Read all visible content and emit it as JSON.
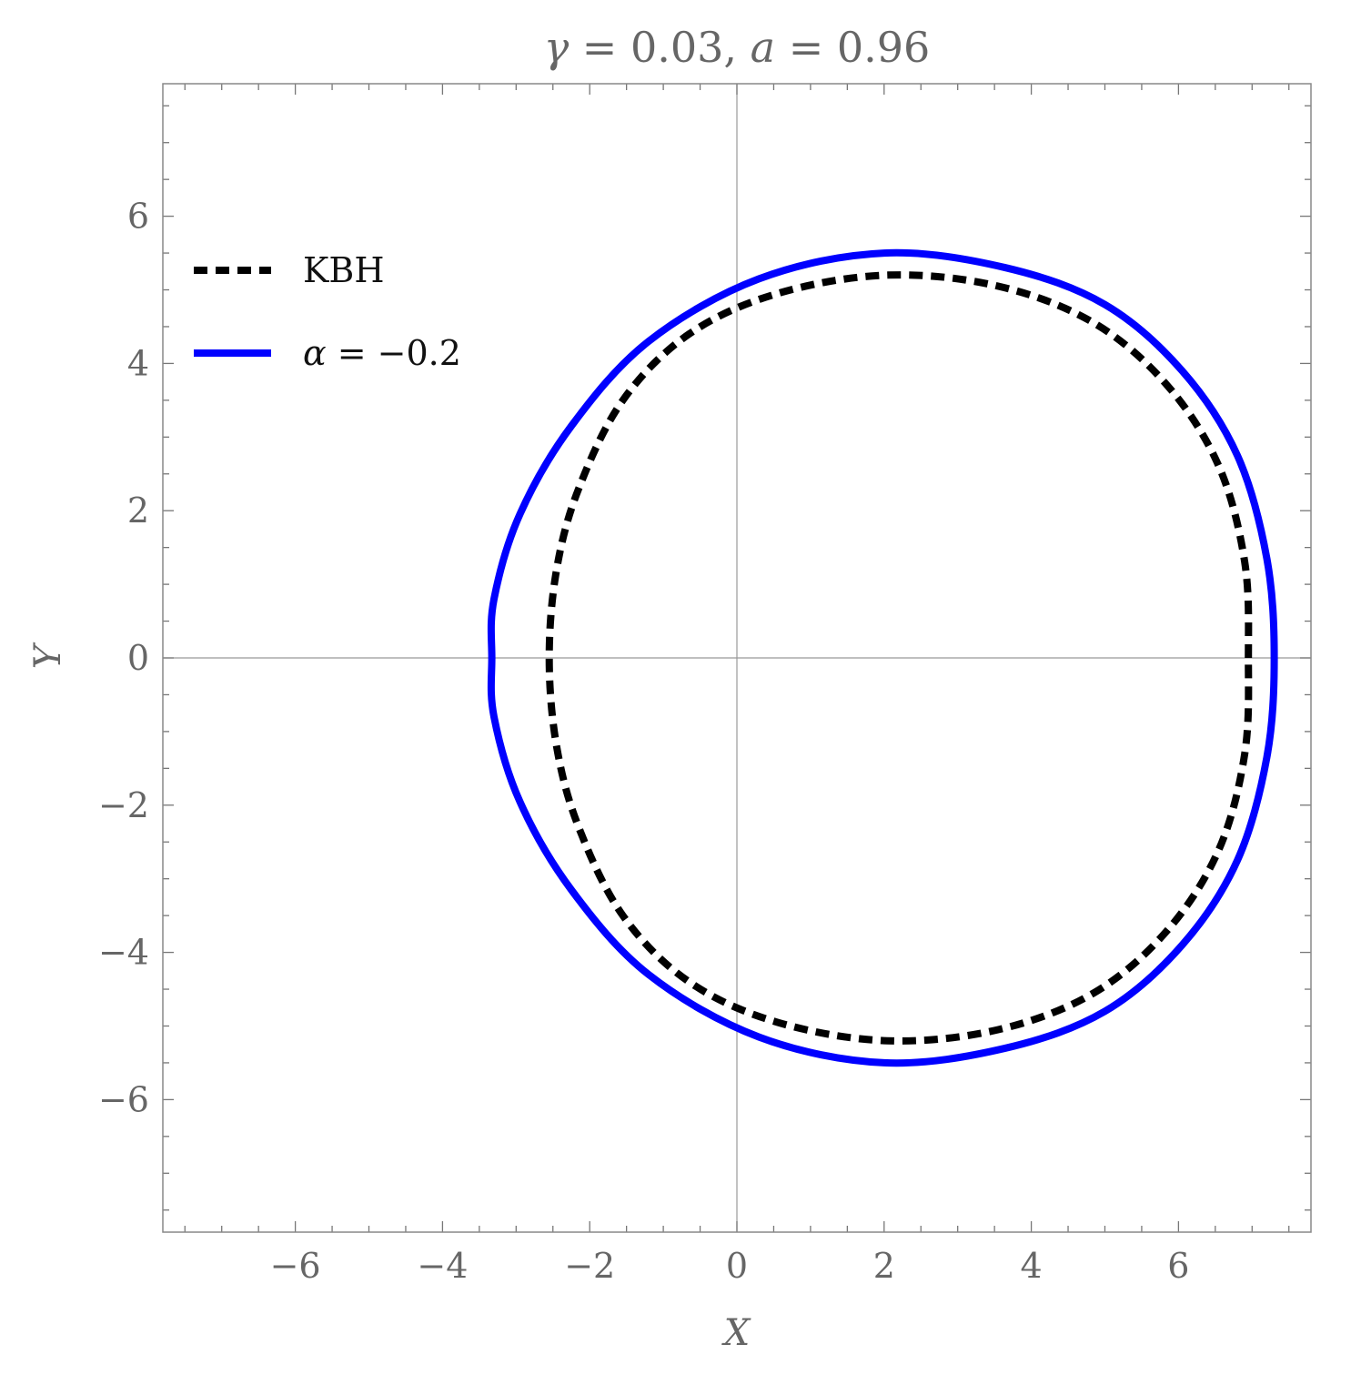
{
  "chart_data": {
    "type": "line",
    "title": {
      "var1": "γ",
      "val1": " = 0.03, ",
      "var2": "a",
      "val2": " = 0.96"
    },
    "xlabel": "X",
    "ylabel": "Y",
    "xlim": [
      -7.8,
      7.8
    ],
    "ylim": [
      -7.8,
      7.8
    ],
    "xticks": [
      -6,
      -4,
      -2,
      0,
      2,
      4,
      6
    ],
    "yticks": [
      -6,
      -4,
      -2,
      0,
      2,
      4,
      6
    ],
    "xtick_labels": [
      "−6",
      "−4",
      "−2",
      "0",
      "2",
      "4",
      "6"
    ],
    "ytick_labels": [
      "−6",
      "−4",
      "−2",
      "0",
      "2",
      "4",
      "6"
    ],
    "grid": false,
    "legend_position": "top-left",
    "series": [
      {
        "name": "KBH",
        "style": "dashed",
        "color": "#000000",
        "x": [
          6.95,
          6.9,
          6.55,
          5.85,
          4.85,
          3.55,
          2.05,
          0.55,
          -0.65,
          -1.55,
          -2.15,
          -2.45,
          -2.55,
          -2.45,
          -2.15,
          -1.55,
          -0.65,
          0.55,
          2.05,
          3.55,
          4.85,
          5.85,
          6.55,
          6.9,
          6.95
        ],
        "y": [
          0,
          1.3,
          2.6,
          3.7,
          4.55,
          5.05,
          5.2,
          4.95,
          4.4,
          3.5,
          2.3,
          1.2,
          0,
          -1.2,
          -2.3,
          -3.5,
          -4.4,
          -4.95,
          -5.2,
          -5.05,
          -4.55,
          -3.7,
          -2.6,
          -1.3,
          0
        ]
      },
      {
        "name": "α = −0.2",
        "legend_var": "α",
        "legend_rest": " = −0.2",
        "style": "solid",
        "color": "#0000ff",
        "x": [
          7.3,
          7.2,
          6.8,
          6.05,
          5.0,
          3.65,
          2.0,
          0.3,
          -1.2,
          -2.25,
          -2.95,
          -3.3,
          -3.33,
          -3.3,
          -2.95,
          -2.25,
          -1.2,
          0.3,
          2.0,
          3.65,
          5.0,
          6.05,
          6.8,
          7.2,
          7.3
        ],
        "y": [
          0,
          1.35,
          2.75,
          3.9,
          4.8,
          5.3,
          5.5,
          5.15,
          4.3,
          3.15,
          1.95,
          0.8,
          0,
          -0.8,
          -1.95,
          -3.15,
          -4.3,
          -5.15,
          -5.5,
          -5.3,
          -4.8,
          -3.9,
          -2.75,
          -1.35,
          0
        ]
      }
    ]
  }
}
